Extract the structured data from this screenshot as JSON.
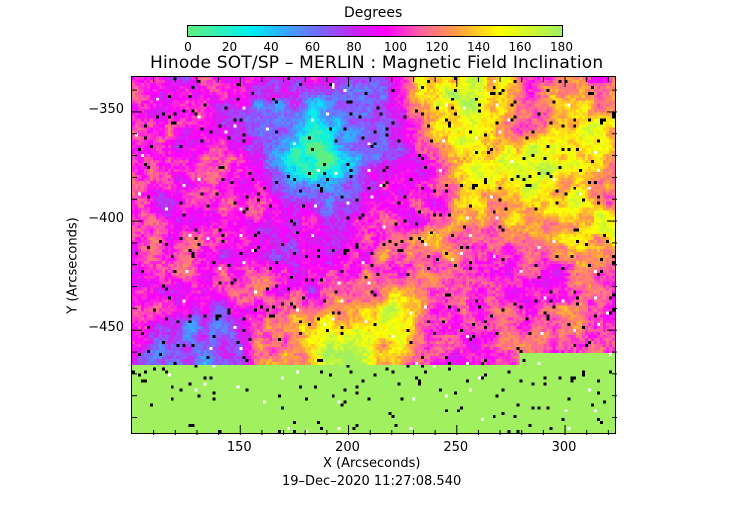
{
  "chart_data": {
    "type": "heatmap",
    "title": "Hinode SOT/SP – MERLIN : Magnetic Field Inclination",
    "xlabel": "X (Arcseconds)",
    "ylabel": "Y (Arcseconds)",
    "xlim": [
      100,
      324
    ],
    "ylim": [
      -498,
      -334
    ],
    "xticks": [
      150,
      200,
      250,
      300
    ],
    "yticks": [
      -350,
      -400,
      -450
    ],
    "xtick_labels": [
      "150",
      "200",
      "250",
      "300"
    ],
    "ytick_labels": [
      "−350",
      "−400",
      "−450"
    ],
    "colorbar": {
      "label": "Degrees",
      "range": [
        0,
        180
      ],
      "ticks": [
        "0",
        "20",
        "40",
        "60",
        "80",
        "100",
        "120",
        "140",
        "160",
        "180"
      ],
      "placement": "top",
      "colors": [
        [
          0,
          "#60f080"
        ],
        [
          30,
          "#00f0f0"
        ],
        [
          45,
          "#30b0ff"
        ],
        [
          65,
          "#8060ff"
        ],
        [
          82,
          "#d020f0"
        ],
        [
          95,
          "#ff00ff"
        ],
        [
          112,
          "#ff60a0"
        ],
        [
          130,
          "#ffa040"
        ],
        [
          150,
          "#ffff00"
        ],
        [
          180,
          "#a0f060"
        ]
      ]
    },
    "timestamp": "19–Dec–2020 11:27:08.540"
  }
}
